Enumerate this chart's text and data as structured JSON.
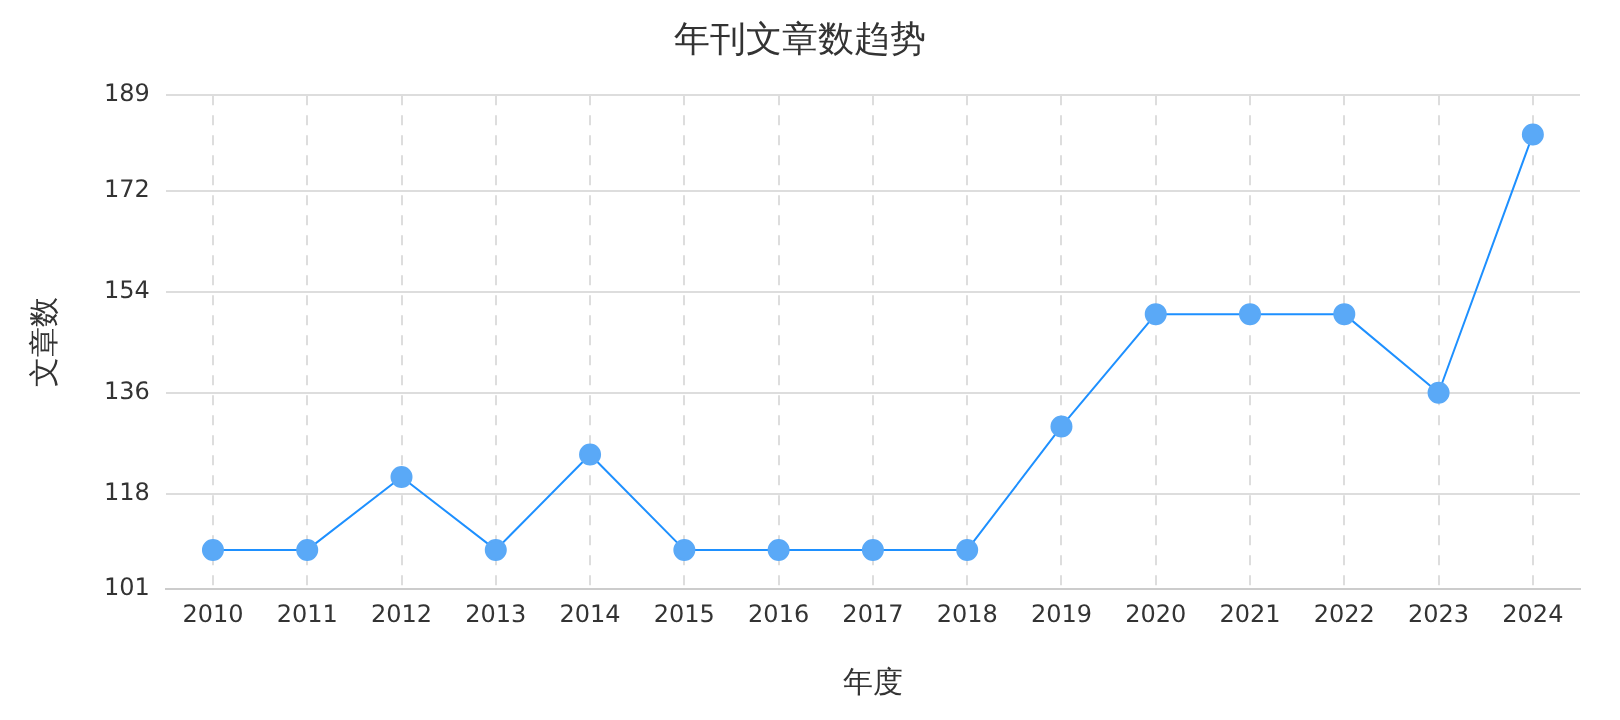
{
  "chart_data": {
    "type": "line",
    "title": "年刊文章数趋势",
    "xlabel": "年度",
    "ylabel": "文章数",
    "categories": [
      "2010",
      "2011",
      "2012",
      "2013",
      "2014",
      "2015",
      "2016",
      "2017",
      "2018",
      "2019",
      "2020",
      "2021",
      "2022",
      "2023",
      "2024"
    ],
    "series": [
      {
        "color": "#1e90ff",
        "values": [
          108,
          108,
          121,
          108,
          125,
          108,
          108,
          108,
          108,
          130,
          150,
          150,
          150,
          136,
          182
        ]
      }
    ],
    "ylim": [
      101,
      189
    ],
    "yticks": [
      101,
      118,
      136,
      154,
      172,
      189
    ],
    "grid": true,
    "legend": false,
    "marker": "circle",
    "line_style": "solid"
  }
}
